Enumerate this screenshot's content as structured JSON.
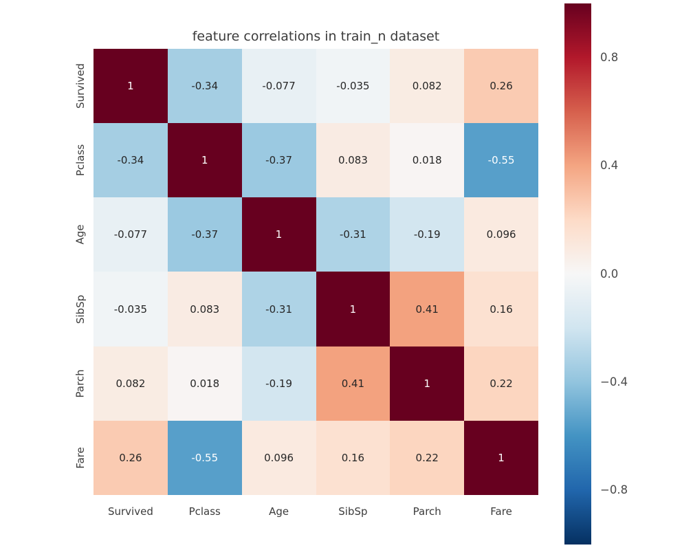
{
  "figure": {
    "background_color": "#ffffff",
    "text_color": "#3b3b3b"
  },
  "chart_data": {
    "type": "heatmap",
    "title": "feature correlations in train_n dataset",
    "categories": [
      "Survived",
      "Pclass",
      "Age",
      "SibSp",
      "Parch",
      "Fare"
    ],
    "matrix": [
      [
        1,
        -0.34,
        -0.077,
        -0.035,
        0.082,
        0.26
      ],
      [
        -0.34,
        1,
        -0.37,
        0.083,
        0.018,
        -0.55
      ],
      [
        -0.077,
        -0.37,
        1,
        -0.31,
        -0.19,
        0.096
      ],
      [
        -0.035,
        0.083,
        -0.31,
        1,
        0.41,
        0.16
      ],
      [
        0.082,
        0.018,
        -0.19,
        0.41,
        1,
        0.22
      ],
      [
        0.26,
        -0.55,
        0.096,
        0.16,
        0.22,
        1
      ]
    ],
    "vmin": -1,
    "vmax": 1,
    "colormap": "RdBu_r",
    "colormap_stops_low_to_high": [
      "#053061",
      "#2166ac",
      "#4393c3",
      "#92c4de",
      "#d1e5f0",
      "#f7f7f7",
      "#fddbc7",
      "#f4a582",
      "#d6604d",
      "#b2182b",
      "#67001f"
    ],
    "annotation_colors": {
      "dark": "#262626",
      "light": "#ffffff"
    },
    "colorbar": {
      "position": "right",
      "tick_labels": [
        "0.8",
        "0.4",
        "0.0",
        "−0.4",
        "−0.8"
      ],
      "tick_values": [
        0.8,
        0.4,
        0.0,
        -0.4,
        -0.8
      ]
    },
    "grid": false,
    "legend": false
  }
}
